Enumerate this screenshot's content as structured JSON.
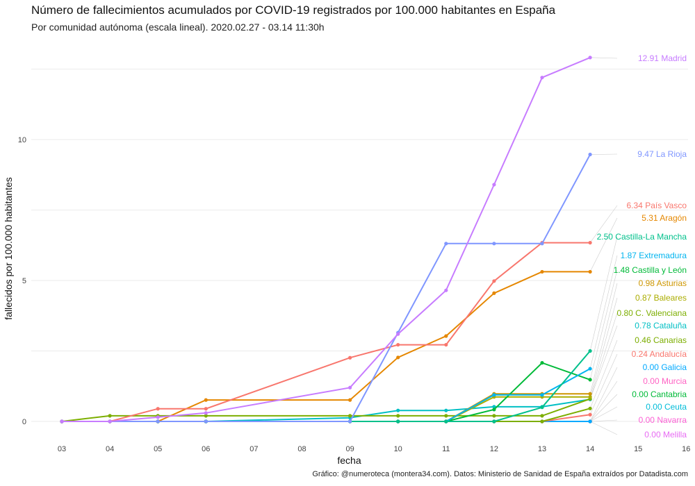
{
  "title": "Número de fallecimientos acumulados por COVID-19 registrados por 100.000 habitantes en España",
  "subtitle": "Por comunidad autónoma (escala lineal). 2020.02.27 - 03.14 11:30h",
  "caption": "Gráfico: @numeroteca (montera34.com). Datos: Ministerio de Sanidad de España extraídos por Datadista.com",
  "chart_data": {
    "type": "line",
    "title": "Número de fallecimientos acumulados por COVID-19 registrados por 100.000 habitantes en España",
    "subtitle": "Por comunidad autónoma (escala lineal). 2020.02.27 - 03.14 11:30h",
    "xlabel": "fecha",
    "ylabel": "fallecidos por 100.000 habitantes",
    "x_ticks": [
      "03",
      "04",
      "05",
      "06",
      "07",
      "08",
      "09",
      "10",
      "11",
      "12",
      "13",
      "14",
      "15",
      "16"
    ],
    "y_ticks": [
      0,
      5,
      10
    ],
    "ylim": [
      -0.4,
      13.5
    ],
    "xlim": [
      2.4,
      16.2
    ],
    "grid": true,
    "legend": "none (end labels at right)",
    "series": [
      {
        "name": "Madrid",
        "color": "#c77cff",
        "label": "12.91 Madrid",
        "x": [
          3,
          4,
          5,
          6,
          9,
          10,
          11,
          12,
          13,
          14
        ],
        "y": [
          0,
          0,
          0.15,
          0.3,
          1.2,
          3.1,
          4.65,
          8.4,
          12.2,
          12.91
        ]
      },
      {
        "name": "La Rioja",
        "color": "#7f96ff",
        "label": "9.47 La Rioja",
        "x": [
          3,
          4,
          5,
          6,
          9,
          10,
          11,
          12,
          13,
          14
        ],
        "y": [
          0,
          0,
          0,
          0,
          0,
          3.15,
          6.31,
          6.31,
          6.31,
          9.47
        ]
      },
      {
        "name": "País Vasco",
        "color": "#f8766d",
        "label": "6.34 País Vasco",
        "x": [
          3,
          4,
          5,
          6,
          9,
          10,
          11,
          12,
          13,
          14
        ],
        "y": [
          0,
          0,
          0.45,
          0.45,
          2.26,
          2.72,
          2.72,
          4.98,
          6.34,
          6.34
        ]
      },
      {
        "name": "Aragón",
        "color": "#e58700",
        "label": "5.31 Aragón",
        "x": [
          3,
          4,
          5,
          6,
          9,
          10,
          11,
          12,
          13,
          14
        ],
        "y": [
          0,
          0,
          0,
          0.76,
          0.76,
          2.27,
          3.03,
          4.55,
          5.31,
          5.31
        ]
      },
      {
        "name": "Castilla-La Mancha",
        "color": "#00c08b",
        "label": "2.50 Castilla-La Mancha",
        "x": [
          3,
          4,
          5,
          6,
          9,
          10,
          11,
          12,
          13,
          14
        ],
        "y": [
          0,
          0,
          0,
          0,
          0,
          0,
          0,
          0,
          0.5,
          2.5
        ]
      },
      {
        "name": "Extremadura",
        "color": "#00b4ef",
        "label": "1.87 Extremadura",
        "x": [
          3,
          4,
          5,
          6,
          9,
          10,
          11,
          12,
          13,
          14
        ],
        "y": [
          0,
          0,
          0,
          0,
          0,
          0,
          0,
          0.94,
          0.94,
          1.87
        ]
      },
      {
        "name": "Castilla y León",
        "color": "#00ba38",
        "label": "1.48 Castilla y León",
        "x": [
          3,
          4,
          5,
          6,
          9,
          10,
          11,
          12,
          13,
          14
        ],
        "y": [
          0,
          0,
          0,
          0,
          0,
          0,
          0,
          0.42,
          2.08,
          1.48
        ]
      },
      {
        "name": "Asturias",
        "color": "#cd9600",
        "label": "0.98 Asturias",
        "x": [
          3,
          4,
          5,
          6,
          9,
          10,
          11,
          12,
          13,
          14
        ],
        "y": [
          0,
          0,
          0,
          0,
          0,
          0,
          0,
          0.98,
          0.98,
          0.98
        ]
      },
      {
        "name": "Baleares",
        "color": "#abad00",
        "label": "0.87 Baleares",
        "x": [
          3,
          4,
          5,
          6,
          9,
          10,
          11,
          12,
          13,
          14
        ],
        "y": [
          0,
          0,
          0,
          0,
          0,
          0,
          0,
          0.87,
          0.87,
          0.87
        ]
      },
      {
        "name": "C. Valenciana",
        "color": "#7cae00",
        "label": "0.80 C. Valenciana",
        "x": [
          3,
          4,
          5,
          6,
          9,
          10,
          11,
          12,
          13,
          14
        ],
        "y": [
          0,
          0.2,
          0.2,
          0.2,
          0.2,
          0.2,
          0.2,
          0.2,
          0.2,
          0.8
        ]
      },
      {
        "name": "Cataluña",
        "color": "#00bfc4",
        "label": "0.78 Cataluña",
        "x": [
          3,
          4,
          5,
          6,
          9,
          10,
          11,
          12,
          13,
          14
        ],
        "y": [
          0,
          0,
          0,
          0,
          0.13,
          0.39,
          0.39,
          0.52,
          0.52,
          0.78
        ]
      },
      {
        "name": "Canarias",
        "color": "#7cae00",
        "label": "0.46 Canarias",
        "x": [
          3,
          4,
          5,
          6,
          9,
          10,
          11,
          12,
          13,
          14
        ],
        "y": [
          0,
          0,
          0,
          0,
          0,
          0,
          0,
          0,
          0,
          0.46
        ]
      },
      {
        "name": "Andalucía",
        "color": "#f8766d",
        "label": "0.24 Andalucía",
        "x": [
          3,
          4,
          5,
          6,
          9,
          10,
          11,
          12,
          13,
          14
        ],
        "y": [
          0,
          0,
          0,
          0,
          0,
          0,
          0,
          0,
          0,
          0.24
        ]
      },
      {
        "name": "Galicia",
        "color": "#00a9ff",
        "label": "0.00 Galicia",
        "x": [
          3,
          4,
          5,
          6,
          9,
          10,
          11,
          12,
          13,
          14
        ],
        "y": [
          0,
          0,
          0,
          0,
          0,
          0,
          0,
          0,
          0,
          0
        ]
      },
      {
        "name": "Murcia",
        "color": "#ff61c3",
        "label": "0.00 Murcia",
        "x": [
          3,
          4,
          5,
          6,
          9,
          10,
          11,
          12,
          13,
          14
        ],
        "y": [
          0,
          0,
          0,
          0,
          0,
          0,
          0,
          0,
          0,
          0
        ]
      },
      {
        "name": "Cantabria",
        "color": "#00ba38",
        "label": "0.00 Cantabria",
        "x": [
          3,
          4,
          5,
          6,
          9,
          10,
          11,
          12,
          13,
          14
        ],
        "y": [
          0,
          0,
          0,
          0,
          0,
          0,
          0,
          0,
          0,
          0
        ]
      },
      {
        "name": "Ceuta",
        "color": "#00bcd8",
        "label": "0.00 Ceuta",
        "x": [
          3,
          4,
          5,
          6,
          9,
          10,
          11,
          12,
          13,
          14
        ],
        "y": [
          0,
          0,
          0,
          0,
          0,
          0,
          0,
          0,
          0,
          0
        ]
      },
      {
        "name": "Navarra",
        "color": "#fc61d5",
        "label": "0.00 Navarra",
        "x": [
          3,
          4,
          5,
          6,
          9,
          10,
          11,
          12,
          13,
          14
        ],
        "y": [
          0,
          0,
          0,
          0,
          0,
          0,
          0,
          0,
          0,
          0
        ]
      },
      {
        "name": "Melilla",
        "color": "#e76bf3",
        "label": "0.00 Melilla",
        "x": [
          3,
          4,
          5,
          6,
          9,
          10,
          11,
          12,
          13,
          14
        ],
        "y": [
          0,
          0,
          0,
          0,
          0,
          0,
          0,
          0,
          0,
          0
        ]
      }
    ]
  }
}
